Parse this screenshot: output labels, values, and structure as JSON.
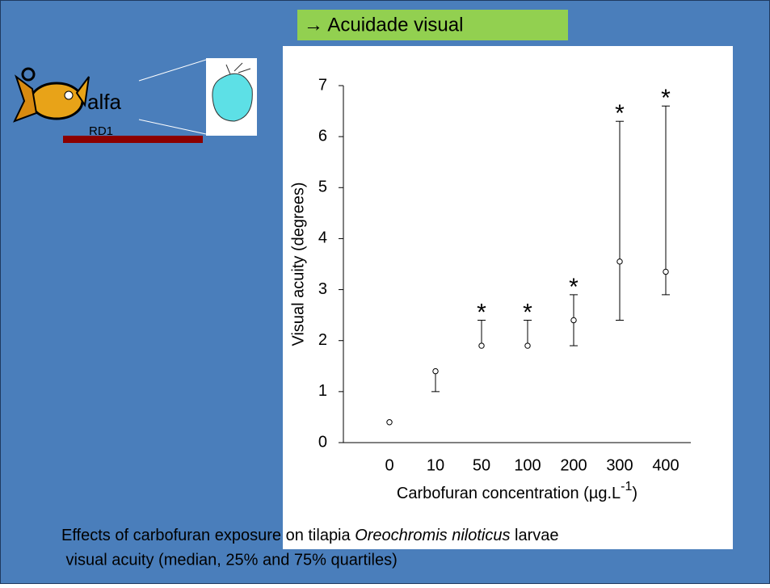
{
  "slide": {
    "heading": "→ Acuidade visual",
    "logo_text": "alfa",
    "logo_subtext": "RD1",
    "caption": {
      "line1_before": "Effects of carbofuran exposure on tilapia ",
      "line1_italic": "Oreochromis niloticus",
      "line1_after": " larvae",
      "line2": " visual acuity (median, 25% and 75% quartiles)"
    }
  },
  "chart_data": {
    "type": "errorbar",
    "y_label": "Visual acuity (degrees)",
    "x_label": {
      "text": "Carbofuran concentration (µg.L",
      "superscript": "-1",
      "suffix": ")"
    },
    "categories": [
      "0",
      "10",
      "50",
      "100",
      "200",
      "300",
      "400"
    ],
    "series": [
      {
        "name": "median",
        "color": "#000000",
        "values": [
          0.4,
          1.4,
          1.9,
          1.9,
          2.4,
          3.55,
          3.35
        ]
      },
      {
        "name": "25%",
        "color": "#000000",
        "values": [
          0.4,
          1.0,
          1.9,
          1.9,
          1.9,
          2.4,
          2.9
        ]
      },
      {
        "name": "75%",
        "color": "#000000",
        "values": [
          0.4,
          1.4,
          2.4,
          2.4,
          2.9,
          6.3,
          6.6
        ]
      }
    ],
    "annotations": [
      null,
      null,
      "*",
      "*",
      "*",
      "*",
      "*"
    ],
    "ylim": [
      0,
      7
    ],
    "yticks": [
      0,
      1,
      2,
      3,
      4,
      5,
      6,
      7
    ]
  }
}
